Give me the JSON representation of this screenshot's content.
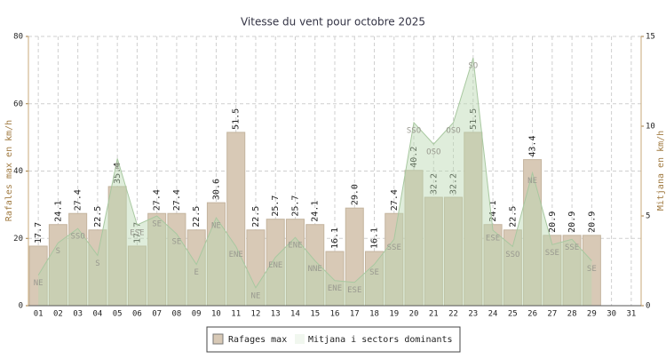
{
  "chart_data": {
    "type": "bar",
    "title": "Vitesse du vent pour octobre 2025",
    "y_label": "Rafales max en km/h",
    "y2_label": "Mitjana en km/h",
    "categories": [
      "01",
      "02",
      "03",
      "04",
      "05",
      "06",
      "07",
      "08",
      "09",
      "10",
      "11",
      "12",
      "13",
      "14",
      "15",
      "16",
      "17",
      "18",
      "19",
      "20",
      "21",
      "22",
      "23",
      "24",
      "25",
      "26",
      "27",
      "28",
      "29",
      "30",
      "31"
    ],
    "ylim": [
      0,
      80
    ],
    "yticks": [
      0,
      20,
      40,
      60,
      80
    ],
    "y2lim": [
      0,
      15
    ],
    "y2ticks": [
      0,
      5,
      10,
      15
    ],
    "grid": true,
    "series": [
      {
        "name": "Rafages max",
        "type": "bar",
        "color": "#d8c9b6",
        "values": [
          17.7,
          24.1,
          27.4,
          22.5,
          35.4,
          17.7,
          27.4,
          27.4,
          22.5,
          30.6,
          51.5,
          22.5,
          25.7,
          25.7,
          24.1,
          16.1,
          29.0,
          16.1,
          27.4,
          40.2,
          32.2,
          32.2,
          51.5,
          24.1,
          22.5,
          43.4,
          20.9,
          20.9,
          20.9,
          null,
          null
        ],
        "value_labels": [
          "17.7",
          "24.1",
          "27.4",
          "22.5",
          "35.4",
          "17.7",
          "27.4",
          "27.4",
          "22.5",
          "30.6",
          "51.5",
          "22.5",
          "25.7",
          "25.7",
          "24.1",
          "16.1",
          "29.0",
          "16.1",
          "27.4",
          "40.2",
          "32.2",
          "32.2",
          "51.5",
          "24.1",
          "22.5",
          "43.4",
          "20.9",
          "20.9",
          "20.9",
          null,
          null
        ]
      },
      {
        "name": "Mitjana i sectors dominants",
        "type": "area",
        "axis": "y2",
        "color": "#b8d8b0",
        "values": [
          1.7,
          3.5,
          4.3,
          2.8,
          8.2,
          4.5,
          5.0,
          4.0,
          2.3,
          4.9,
          3.3,
          1.0,
          2.7,
          3.8,
          2.5,
          1.4,
          1.3,
          2.3,
          3.7,
          10.2,
          9.0,
          10.2,
          13.8,
          4.2,
          3.3,
          7.4,
          3.4,
          3.7,
          2.5,
          null,
          null
        ],
        "labels": [
          "NE",
          "S",
          "SSO",
          "S",
          "E",
          "ESE",
          "SE",
          "SE",
          "E",
          "NE",
          "ENE",
          "NE",
          "ENE",
          "ENE",
          "NNE",
          "ENE",
          "ESE",
          "SE",
          "SSE",
          "SSO",
          "OSO",
          "OSO",
          "SO",
          "ESE",
          "SSO",
          "NE",
          "SSE",
          "SSE",
          "SE",
          null,
          null
        ]
      }
    ]
  }
}
